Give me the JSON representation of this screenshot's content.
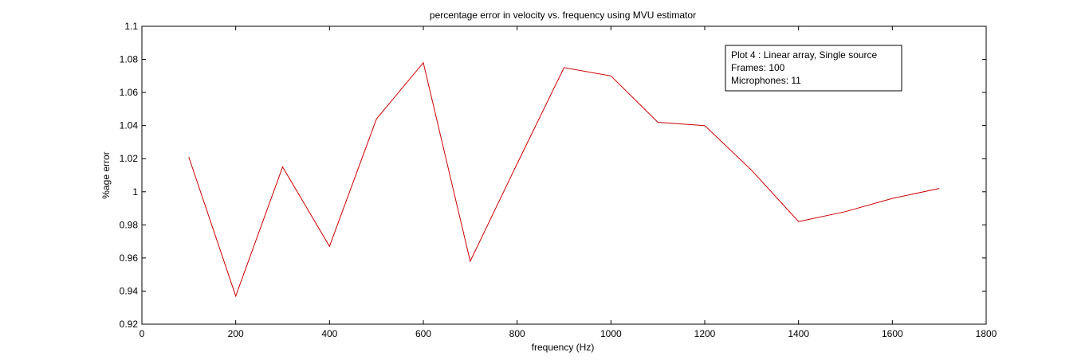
{
  "chart_data": {
    "type": "line",
    "title": "percentage error in velocity vs. frequency using MVU estimator",
    "xlabel": "frequency (Hz)",
    "ylabel": "%age error",
    "xlim": [
      0,
      1800
    ],
    "ylim": [
      0.92,
      1.1
    ],
    "xticks": [
      0,
      200,
      400,
      600,
      800,
      1000,
      1200,
      1400,
      1600,
      1800
    ],
    "yticks": [
      "0.92",
      "0.94",
      "0.96",
      "0.98",
      "1",
      "1.02",
      "1.04",
      "1.06",
      "1.08",
      "1.1"
    ],
    "grid": false,
    "line_color": "#cc0000",
    "series": [
      {
        "x": [
          100,
          200,
          300,
          400,
          500,
          600,
          700,
          800,
          900,
          1000,
          1100,
          1200,
          1300,
          1400,
          1500,
          1600,
          1700
        ],
        "y": [
          1.021,
          0.937,
          1.015,
          0.967,
          1.044,
          1.078,
          0.958,
          1.017,
          1.075,
          1.07,
          1.042,
          1.04,
          1.013,
          0.982,
          0.988,
          0.996,
          1.002
        ]
      }
    ],
    "annotation": {
      "placement": "top-right",
      "lines": [
        "Plot 4 : Linear array, Single source",
        "Frames: 100",
        "Microphones: 11"
      ]
    }
  }
}
